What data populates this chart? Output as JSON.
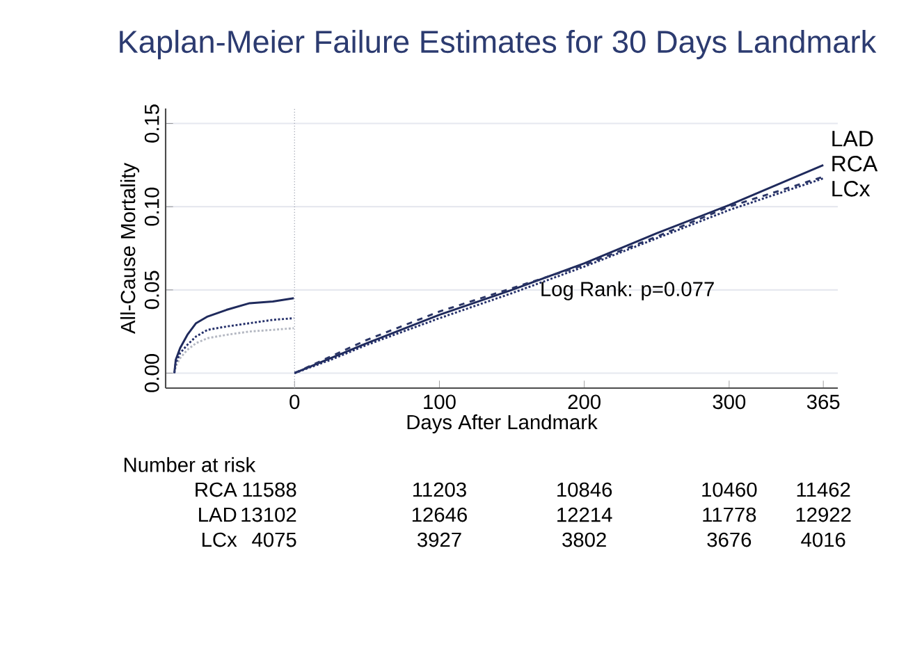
{
  "chart_data": {
    "type": "line",
    "title": "Kaplan-Meier Failure Estimates for 30 Days Landmark",
    "xlabel": "Days After Landmark",
    "ylabel": "All-Cause Mortality",
    "xlim": [
      -89,
      375
    ],
    "ylim": [
      -0.009,
      0.159
    ],
    "xticks": [
      0,
      100,
      200,
      300,
      365
    ],
    "yticks": [
      {
        "value": 0,
        "label": "0.00"
      },
      {
        "value": 0.05,
        "label": "0.05"
      },
      {
        "value": 0.1,
        "label": "0.10"
      },
      {
        "value": 0.15,
        "label": "0.15"
      }
    ],
    "grid": "y",
    "ref_lines": [
      {
        "axis": "x",
        "value": 0,
        "color": "#a6aab6",
        "line_style": "dotted"
      }
    ],
    "series": [
      {
        "color": "#1f2a5c",
        "line_style": "solid",
        "x": [
          -83,
          -82,
          -79,
          -74,
          -68,
          -60,
          -47,
          -31,
          -15,
          -0.5
        ],
        "values": [
          0,
          0.008,
          0.015,
          0.023,
          0.03,
          0.034,
          0.038,
          0.042,
          0.043,
          0.045
        ]
      },
      {
        "color": "#b4b8c2",
        "line_style": "dotted",
        "x": [
          -83,
          -82,
          -79,
          -74,
          -68,
          -60,
          -47,
          -31,
          -15,
          -0.5
        ],
        "values": [
          0,
          0.004,
          0.009,
          0.014,
          0.018,
          0.021,
          0.023,
          0.025,
          0.026,
          0.027
        ]
      },
      {
        "color": "#25306a",
        "line_style": "dotted",
        "x": [
          -83,
          -82,
          -79,
          -74,
          -68,
          -60,
          -47,
          -31,
          -15,
          -0.5
        ],
        "values": [
          0,
          0.006,
          0.012,
          0.017,
          0.022,
          0.026,
          0.028,
          0.03,
          0.032,
          0.033
        ]
      },
      {
        "name": "LAD",
        "color": "#1f2a5c",
        "line_style": "solid",
        "x": [
          0,
          25,
          50,
          100,
          150,
          200,
          250,
          300,
          365
        ],
        "values": [
          0,
          0.009,
          0.018,
          0.035,
          0.05,
          0.066,
          0.084,
          0.101,
          0.125
        ]
      },
      {
        "name": "RCA",
        "color": "#2a3566",
        "line_style": "dashed",
        "x": [
          0,
          25,
          50,
          100,
          150,
          200,
          250,
          300,
          365
        ],
        "values": [
          0,
          0.01,
          0.02,
          0.037,
          0.051,
          0.065,
          0.082,
          0.1,
          0.118
        ]
      },
      {
        "name": "LCx",
        "color": "#25306a",
        "line_style": "dotted",
        "x": [
          0,
          25,
          50,
          100,
          150,
          200,
          250,
          300,
          365
        ],
        "values": [
          0,
          0.008,
          0.017,
          0.033,
          0.048,
          0.064,
          0.081,
          0.098,
          0.117
        ]
      }
    ],
    "annotations": [
      "Log Rank: p=0.077",
      "Number at risk",
      "RCA",
      "11588",
      "11203",
      "10846",
      "10460",
      "11462",
      "LAD",
      "13102",
      "12646",
      "12214",
      "11778",
      "12922",
      "LCx",
      "4075",
      "3927",
      "3802",
      "3676",
      "4016"
    ]
  }
}
